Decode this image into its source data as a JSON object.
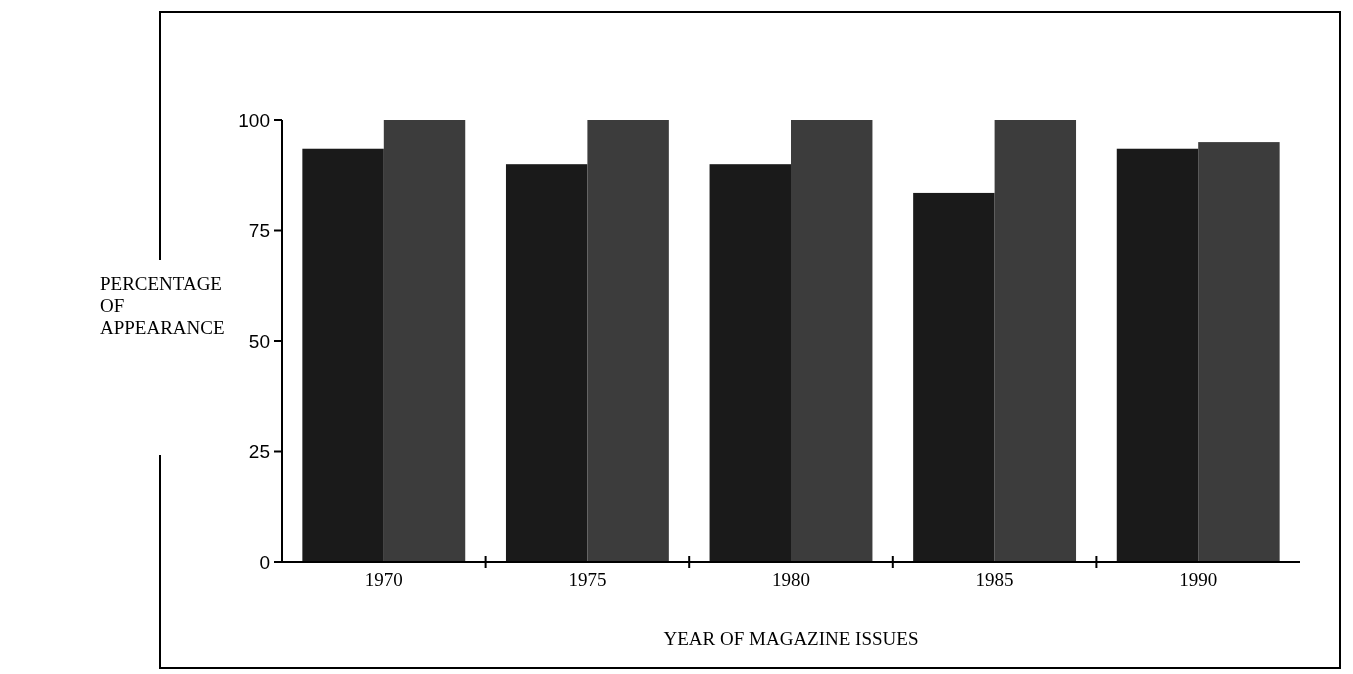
{
  "chart_data": {
    "type": "bar",
    "xlabel": "YEAR OF MAGAZINE ISSUES",
    "ylabel": "PERCENTAGE OF APPEARANCE",
    "categories": [
      "1970",
      "1975",
      "1980",
      "1985",
      "1990"
    ],
    "series": [
      {
        "color": "#1a1a1a",
        "values": [
          93.5,
          90,
          90,
          83.5,
          93.5
        ]
      },
      {
        "color": "#3c3c3c",
        "values": [
          100,
          100,
          100,
          100,
          95
        ]
      }
    ],
    "ylim": [
      0,
      100
    ],
    "yticks": [
      0,
      25,
      50,
      75,
      100
    ],
    "grid": false
  }
}
